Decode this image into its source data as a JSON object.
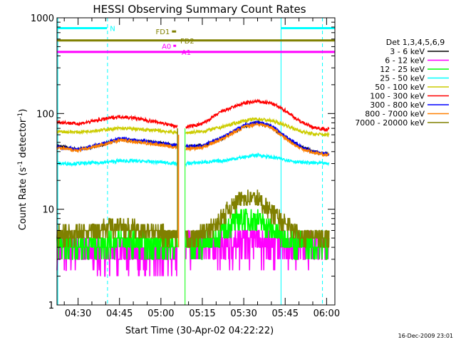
{
  "chart_data": {
    "type": "line",
    "title": "HESSI Observing Summary Count Rates",
    "xlabel": "Start Time (30-Apr-02 04:22:22)",
    "ylabel_main": "Count Rate (s",
    "ylabel_sup1": "-1",
    "ylabel_mid": " detector",
    "ylabel_sup2": "-1",
    "ylabel_end": ")",
    "y_scale": "log",
    "ylim": [
      1,
      1000
    ],
    "xlim": [
      "04:22:22",
      "06:03:00"
    ],
    "x_ticks": [
      "04:30",
      "04:45",
      "05:00",
      "05:15",
      "05:30",
      "05:45",
      "06:00"
    ],
    "y_ticks": [
      "1",
      "10",
      "100",
      "1000"
    ],
    "legend_title": "Det 1,3,4,5,6,9",
    "legend_position": "right",
    "timestamp": "16-Dec-2009 23:01",
    "series": [
      {
        "name": "3 - 6 keV",
        "color": "#000000",
        "x": [
          "04:22",
          "04:30",
          "04:40",
          "04:45",
          "04:50",
          "05:00",
          "05:06",
          "05:09",
          "05:15",
          "05:22",
          "05:30",
          "05:35",
          "05:40",
          "05:45",
          "05:50",
          "05:55",
          "06:00"
        ],
        "y": [
          46,
          42,
          48,
          54,
          52,
          49,
          46,
          45,
          46,
          55,
          73,
          80,
          73,
          57,
          46,
          40,
          38
        ]
      },
      {
        "name": "6 - 12 keV",
        "color": "#ff00ff",
        "x": [
          "04:22",
          "04:30",
          "04:35",
          "04:40",
          "04:45",
          "04:50",
          "04:55",
          "05:00",
          "05:05",
          "05:09",
          "05:15",
          "05:20",
          "05:25",
          "05:30",
          "05:35",
          "05:40",
          "05:45",
          "05:50",
          "06:00"
        ],
        "y": [
          4.3,
          4.2,
          3.6,
          3.5,
          3.6,
          3.5,
          3.4,
          3.3,
          3.4,
          4.4,
          4.2,
          4.3,
          4.4,
          4.8,
          5.2,
          4.8,
          4.4,
          4.2,
          4.0
        ]
      },
      {
        "name": "12 - 25 keV",
        "color": "#00ff00",
        "x": [
          "04:22",
          "04:30",
          "04:40",
          "04:45",
          "04:50",
          "05:00",
          "05:06",
          "05:09",
          "05:15",
          "05:20",
          "05:25",
          "05:30",
          "05:35",
          "05:40",
          "05:45",
          "05:50",
          "06:00"
        ],
        "y": [
          4.2,
          4.2,
          4.5,
          4.8,
          4.5,
          4.3,
          4.2,
          4.2,
          4.4,
          5.0,
          7.0,
          8.2,
          7.8,
          6.2,
          5.0,
          4.4,
          4.2
        ]
      },
      {
        "name": "25 - 50 keV",
        "color": "#00ffff",
        "x": [
          "04:22",
          "04:30",
          "04:40",
          "04:45",
          "04:50",
          "05:00",
          "05:06",
          "05:09",
          "05:15",
          "05:22",
          "05:30",
          "05:35",
          "05:40",
          "05:45",
          "05:50",
          "06:00"
        ],
        "y": [
          30,
          30,
          31,
          32,
          32,
          31,
          30,
          30,
          31,
          32,
          35,
          37,
          35,
          33,
          31,
          30
        ]
      },
      {
        "name": "50 - 100 keV",
        "color": "#cccc00",
        "x": [
          "04:22",
          "04:30",
          "04:40",
          "04:45",
          "04:50",
          "05:00",
          "05:06",
          "05:09",
          "05:15",
          "05:22",
          "05:30",
          "05:35",
          "05:40",
          "05:45",
          "05:50",
          "05:55",
          "06:00"
        ],
        "y": [
          65,
          64,
          68,
          70,
          69,
          66,
          63,
          63,
          65,
          72,
          84,
          88,
          84,
          76,
          66,
          61,
          60
        ]
      },
      {
        "name": "100 - 300 keV",
        "color": "#ff0000",
        "x": [
          "04:22",
          "04:30",
          "04:40",
          "04:45",
          "04:50",
          "05:00",
          "05:06",
          "05:09",
          "05:15",
          "05:22",
          "05:30",
          "05:35",
          "05:40",
          "05:45",
          "05:50",
          "05:55",
          "06:00"
        ],
        "y": [
          82,
          78,
          88,
          93,
          90,
          80,
          73,
          72,
          78,
          105,
          128,
          134,
          128,
          108,
          84,
          72,
          68
        ]
      },
      {
        "name": "300 - 800 keV",
        "color": "#0000ff",
        "x": [
          "04:22",
          "04:30",
          "04:40",
          "04:45",
          "04:50",
          "05:00",
          "05:06",
          "05:09",
          "05:15",
          "05:22",
          "05:30",
          "05:35",
          "05:40",
          "05:45",
          "05:50",
          "05:55",
          "06:00"
        ],
        "y": [
          45,
          42,
          49,
          55,
          53,
          49,
          46,
          45,
          46,
          56,
          75,
          81,
          75,
          58,
          46,
          40,
          38
        ]
      },
      {
        "name": "800 - 7000 keV",
        "color": "#ff8000",
        "x": [
          "04:22",
          "04:30",
          "04:40",
          "04:45",
          "04:50",
          "05:00",
          "05:06",
          "05:09",
          "05:15",
          "05:22",
          "05:30",
          "05:35",
          "05:40",
          "05:45",
          "05:50",
          "05:55",
          "06:00"
        ],
        "y": [
          44,
          41,
          48,
          53,
          51,
          47,
          44,
          43,
          44,
          54,
          72,
          78,
          72,
          55,
          44,
          39,
          37
        ]
      },
      {
        "name": "7000 - 20000 keV",
        "color": "#808000",
        "x": [
          "04:22",
          "04:30",
          "04:40",
          "04:45",
          "04:50",
          "05:00",
          "05:06",
          "05:09",
          "05:15",
          "05:20",
          "05:25",
          "05:30",
          "05:35",
          "05:40",
          "05:45",
          "05:50",
          "06:00"
        ],
        "y": [
          5.5,
          5.5,
          6.5,
          6.8,
          6.2,
          5.5,
          5.0,
          5.0,
          5.5,
          7.0,
          10.5,
          13.5,
          13.0,
          9.5,
          7.0,
          5.5,
          5.2
        ]
      }
    ],
    "flags": [
      {
        "label": "N",
        "color": "#00ffff",
        "level": 780,
        "ranges": [
          [
            "04:22:22",
            "04:40:30"
          ],
          [
            "05:43:30",
            "06:03:00"
          ]
        ]
      },
      {
        "label": "FD1",
        "color": "#808000",
        "level": 720,
        "ranges": [
          [
            "05:04:00",
            "05:05:30"
          ]
        ]
      },
      {
        "label": "FD2",
        "color": "#808000",
        "level": 580,
        "ranges": [
          [
            "04:22:22",
            "06:03:00"
          ]
        ]
      },
      {
        "label": "A0",
        "color": "#ff00ff",
        "level": 510,
        "ranges": [
          [
            "05:04:30",
            "05:05:30"
          ]
        ]
      },
      {
        "label": "A1",
        "color": "#ff00ff",
        "level": 440,
        "ranges": [
          [
            "04:22:22",
            "06:03:00"
          ]
        ]
      }
    ],
    "vlines": [
      {
        "time": "04:22:40",
        "style": "solid",
        "color": "#00ffff"
      },
      {
        "time": "04:40:40",
        "style": "dashed",
        "color": "#00ffff"
      },
      {
        "time": "05:43:30",
        "style": "solid",
        "color": "#00ffff"
      },
      {
        "time": "05:58:30",
        "style": "dashed",
        "color": "#00ffff"
      }
    ],
    "gap": {
      "start": "05:06:00",
      "end": "05:09:00"
    }
  }
}
